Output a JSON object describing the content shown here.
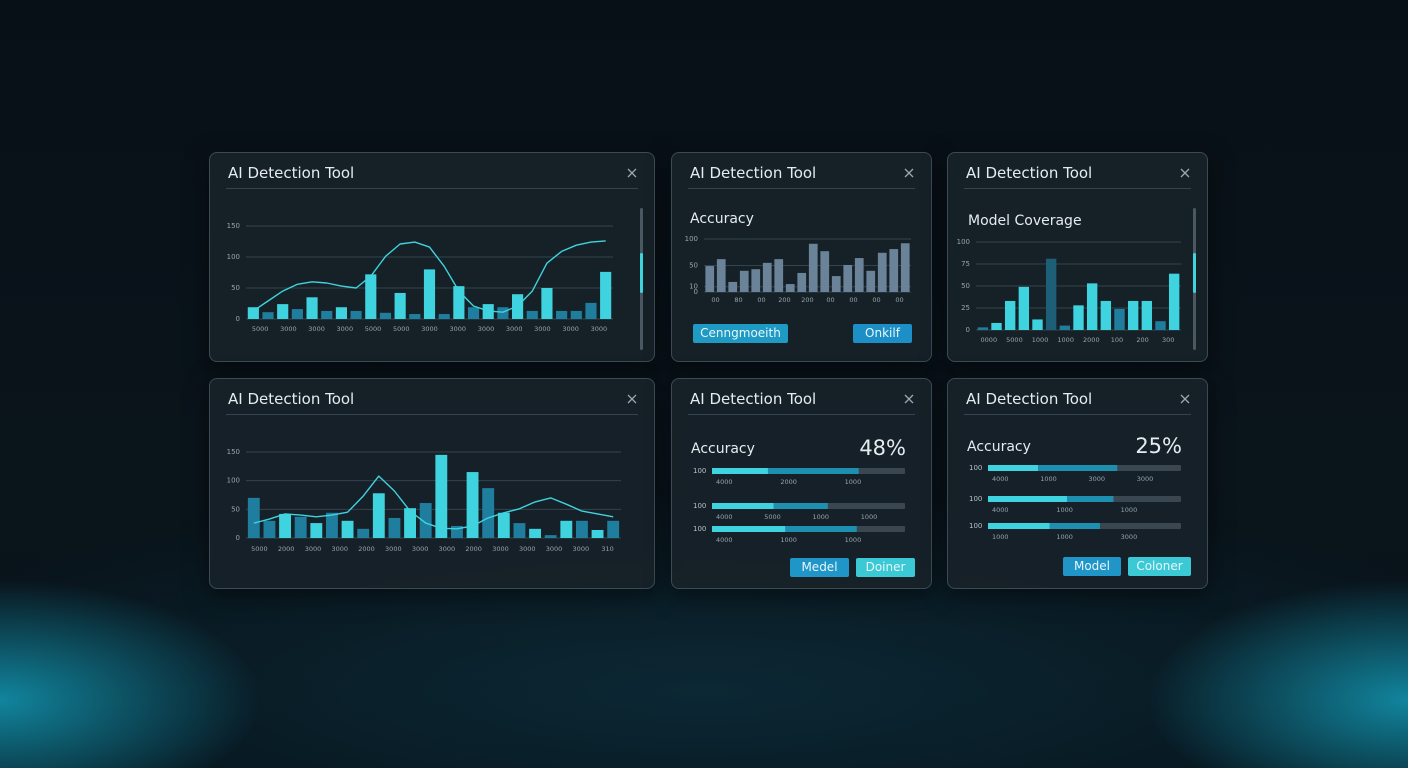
{
  "panels": [
    {
      "title": "AI Detection Tool",
      "chart_data": {
        "type": "bar",
        "ylim": [
          0,
          150
        ],
        "yticks": [
          150,
          100,
          50,
          0
        ],
        "values": [
          19,
          11,
          24,
          16,
          35,
          13,
          19,
          13,
          72,
          10,
          42,
          8,
          80,
          8,
          53,
          19,
          24,
          19,
          40,
          13,
          50,
          13,
          13,
          26,
          76
        ],
        "colors": [
          "#3fd3df",
          "#1f7e9e",
          "#3fd3df",
          "#1f7e9e",
          "#3fd3df",
          "#1f7e9e",
          "#3fd3df",
          "#1f7e9e",
          "#3fd3df",
          "#1f7e9e",
          "#3fd3df",
          "#1f7e9e",
          "#3fd3df",
          "#1f7e9e",
          "#3fd3df",
          "#1f7e9e",
          "#3fd3df",
          "#1f7e9e",
          "#3fd3df",
          "#1f7e9e",
          "#3fd3df",
          "#1f7e9e",
          "#1f7e9e",
          "#1f7e9e",
          "#3fd3df"
        ],
        "line_values": [
          13,
          29,
          45,
          56,
          60,
          58,
          53,
          50,
          69,
          101,
          121,
          124,
          116,
          85,
          45,
          21,
          13,
          11,
          21,
          45,
          90,
          109,
          119,
          124,
          126
        ],
        "line_color": "#3fd3df",
        "xlabels": [
          "5000",
          "3000",
          "3000",
          "3000",
          "5000",
          "5000",
          "3000",
          "3000",
          "3000",
          "3000",
          "3000",
          "3000",
          "3000"
        ]
      }
    },
    {
      "title": "AI Detection Tool",
      "subtitle": "Accuracy",
      "chart_data": {
        "type": "bar",
        "ylim": [
          0,
          100
        ],
        "yticks": [
          100,
          50,
          10,
          0
        ],
        "values": [
          49,
          62,
          19,
          40,
          43,
          55,
          62,
          15,
          36,
          91,
          77,
          30,
          51,
          64,
          40,
          74,
          81,
          92
        ],
        "color": "#6b8399",
        "xlabels": [
          "00",
          "80",
          "00",
          "200",
          "200",
          "00",
          "00",
          "00",
          "00"
        ]
      },
      "buttons": [
        "Cenngmoeith",
        "Onkilf"
      ]
    },
    {
      "title": "AI Detection Tool",
      "subtitle": "Model Coverage",
      "chart_data": {
        "type": "bar",
        "ylim": [
          0,
          100
        ],
        "yticks": [
          100,
          75,
          50,
          25,
          0
        ],
        "values": [
          3,
          8,
          33,
          49,
          12,
          81,
          5,
          28,
          53,
          33,
          24,
          33,
          33,
          10,
          64
        ],
        "colors": [
          "#1f7e9e",
          "#3fd3df",
          "#3fd3df",
          "#3fd3df",
          "#3fd3df",
          "#1e5f78",
          "#1f7e9e",
          "#3fd3df",
          "#3fd3df",
          "#3fd3df",
          "#1f7e9e",
          "#3fd3df",
          "#3fd3df",
          "#1f7e9e",
          "#3fd3df"
        ],
        "xlabels": [
          "0000",
          "5000",
          "1000",
          "1000",
          "2000",
          "100",
          "200",
          "300"
        ]
      }
    },
    {
      "title": "AI Detection Tool",
      "chart_data": {
        "type": "bar",
        "ylim": [
          0,
          150
        ],
        "yticks": [
          150,
          100,
          50,
          0
        ],
        "values": [
          70,
          30,
          42,
          37,
          26,
          44,
          30,
          16,
          78,
          35,
          52,
          61,
          145,
          21,
          115,
          87,
          44,
          26,
          16,
          5,
          30,
          30,
          14,
          30
        ],
        "colors": [
          "#1f7e9e",
          "#1f7e9e",
          "#3fd3df",
          "#1f7e9e",
          "#3fd3df",
          "#1f7e9e",
          "#3fd3df",
          "#1f7e9e",
          "#3fd3df",
          "#1f7e9e",
          "#3fd3df",
          "#1f7e9e",
          "#3fd3df",
          "#1f7e9e",
          "#3fd3df",
          "#1f7e9e",
          "#3fd3df",
          "#1f7e9e",
          "#3fd3df",
          "#1f7e9e",
          "#3fd3df",
          "#1f7e9e",
          "#3fd3df",
          "#1f7e9e"
        ],
        "line_values": [
          26,
          33,
          42,
          40,
          37,
          40,
          45,
          73,
          108,
          82,
          47,
          26,
          17,
          16,
          21,
          35,
          44,
          51,
          63,
          70,
          59,
          47,
          42,
          37
        ],
        "line_color": "#3fd3df",
        "xlabels": [
          "5000",
          "2000",
          "3000",
          "3000",
          "2000",
          "3000",
          "3000",
          "3000",
          "2000",
          "3000",
          "3000",
          "3000",
          "3000",
          "310"
        ]
      }
    },
    {
      "title": "AI Detection Tool",
      "subtitle": "Accuracy",
      "percent": "48%",
      "progress": {
        "xlim": [
          0,
          100
        ],
        "rows": [
          {
            "label": "100",
            "segments": [
              29,
              47
            ],
            "ticks": [
              "4000",
              "2000",
              "1000"
            ]
          },
          {
            "label": "100",
            "segments": [
              32,
              28
            ],
            "ticks": [
              "4000",
              "5000",
              "1000",
              "1000"
            ]
          },
          {
            "label": "100",
            "segments": [
              38,
              37
            ],
            "ticks": [
              "4000",
              "1000",
              "1000"
            ]
          }
        ]
      },
      "buttons": [
        "Medel",
        "Doiner"
      ]
    },
    {
      "title": "AI Detection Tool",
      "subtitle": "Accuracy",
      "percent": "25%",
      "progress": {
        "xlim": [
          0,
          100
        ],
        "rows": [
          {
            "label": "100",
            "segments": [
              26,
              41
            ],
            "ticks": [
              "4000",
              "1000",
              "3000",
              "3000"
            ]
          },
          {
            "label": "100",
            "segments": [
              41,
              24
            ],
            "ticks": [
              "4000",
              "1000",
              "1000"
            ]
          },
          {
            "label": "100",
            "segments": [
              32,
              26
            ],
            "ticks": [
              "1000",
              "1000",
              "3000"
            ]
          }
        ]
      },
      "buttons": [
        "Model",
        "Coloner"
      ]
    }
  ]
}
